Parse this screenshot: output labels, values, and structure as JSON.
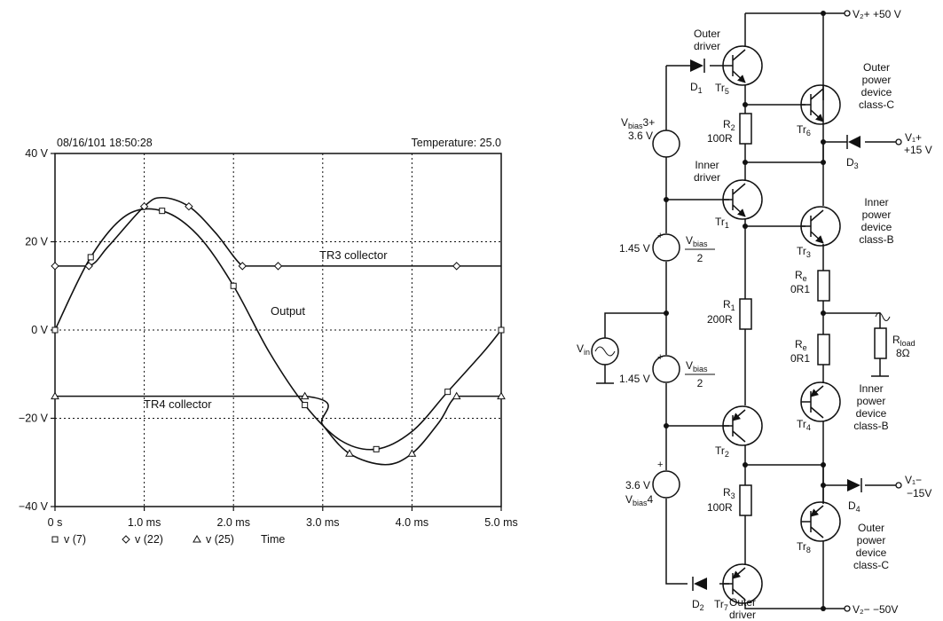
{
  "chart_data": {
    "type": "line",
    "header_left": "08/16/101   18:50:28",
    "header_right": "Temperature: 25.0",
    "xlabel": "Time",
    "x_ticks": [
      "0 s",
      "1.0 ms",
      "2.0 ms",
      "3.0 ms",
      "4.0 ms",
      "5.0 ms"
    ],
    "y_ticks": [
      "40 V",
      "20 V",
      "0 V",
      "−20 V",
      "−40 V"
    ],
    "xlim": [
      0,
      5
    ],
    "ylim": [
      -40,
      40
    ],
    "grid": true,
    "legend": [
      {
        "marker": "square",
        "label": "v (7)"
      },
      {
        "marker": "diamond",
        "label": "v (22)"
      },
      {
        "marker": "triangle",
        "label": "v (25)"
      }
    ],
    "annotations": [
      "TR3 collector",
      "Output",
      "TR4 collector"
    ],
    "series": [
      {
        "name": "v (7)",
        "marker": "square",
        "x": [
          0,
          0.4,
          0.8,
          1.2,
          1.6,
          2.0,
          2.4,
          2.8,
          3.2,
          3.6,
          4.0,
          4.4,
          4.8,
          5.0
        ],
        "y": [
          0,
          16.5,
          26,
          27,
          21.5,
          10,
          -5,
          -17,
          -25,
          -27,
          -23,
          -14,
          -5,
          0
        ]
      },
      {
        "name": "v (22)",
        "marker": "diamond",
        "x": [
          0,
          0.38,
          0.6,
          1.0,
          1.2,
          1.5,
          1.8,
          2.1,
          2.3,
          2.5,
          3.5,
          4.5,
          5.0
        ],
        "y": [
          14.5,
          14.5,
          19,
          28,
          30,
          28,
          22,
          14.5,
          14.5,
          14.5,
          14.5,
          14.5,
          14.5
        ]
      },
      {
        "name": "v (25)",
        "marker": "triangle",
        "x": [
          0,
          2.8,
          3.0,
          3.3,
          3.7,
          4.0,
          4.3,
          4.5,
          4.8,
          5.0
        ],
        "y": [
          -15,
          -15,
          -21.5,
          -28,
          -30.5,
          -28,
          -21,
          -15,
          -15,
          -15
        ]
      }
    ]
  },
  "circuit": {
    "supplies": {
      "v2_pos": "V₂+  +50 V",
      "v2_neg": "V₂−  −50V",
      "v1_pos_a": "V₁+",
      "v1_pos_b": "+15 V",
      "v1_neg_a": "V₁−",
      "v1_neg_b": "−15V"
    },
    "labels": {
      "outer_driver_top": [
        "Outer",
        "driver"
      ],
      "outer_driver_bottom": [
        "Outer",
        "driver"
      ],
      "inner_driver": [
        "Inner",
        "driver"
      ],
      "tr6_desc": [
        "Outer",
        "power",
        "device",
        "class-C"
      ],
      "tr3_desc": [
        "Inner",
        "power",
        "device",
        "class-B"
      ],
      "tr4_desc": [
        "Inner",
        "power",
        "device",
        "class-B"
      ],
      "tr8_desc": [
        "Outer",
        "power",
        "device",
        "class-C"
      ],
      "vbias3": [
        "V",
        "bias",
        "3+"
      ],
      "vbias3_val": "3.6 V",
      "vbias4_val": "3.6 V",
      "vbias4": [
        "V",
        "bias",
        "4"
      ],
      "v145_top": "1.45 V",
      "v145_bottom": "1.45 V",
      "vbias_half": [
        "V",
        "bias",
        "2"
      ],
      "vin": [
        "V",
        "in"
      ],
      "r2": [
        "R",
        "2"
      ],
      "r2_val": "100R",
      "r1": [
        "R",
        "1"
      ],
      "r1_val": "200R",
      "r3": [
        "R",
        "3"
      ],
      "r3_val": "100R",
      "re": [
        "R",
        "e"
      ],
      "re_val": "0R1",
      "rload": [
        "R",
        "load"
      ],
      "rload_val": "8Ω",
      "d1": [
        "D",
        "1"
      ],
      "d2": [
        "D",
        "2"
      ],
      "d3": [
        "D",
        "3"
      ],
      "d4": [
        "D",
        "4"
      ],
      "tr1": [
        "Tr",
        "1"
      ],
      "tr2": [
        "Tr",
        "2"
      ],
      "tr3": [
        "Tr",
        "3"
      ],
      "tr4": [
        "Tr",
        "4"
      ],
      "tr5": [
        "Tr",
        "5"
      ],
      "tr6": [
        "Tr",
        "6"
      ],
      "tr7": [
        "Tr",
        "7"
      ],
      "tr8": [
        "Tr",
        "8"
      ],
      "plus": "+"
    }
  }
}
